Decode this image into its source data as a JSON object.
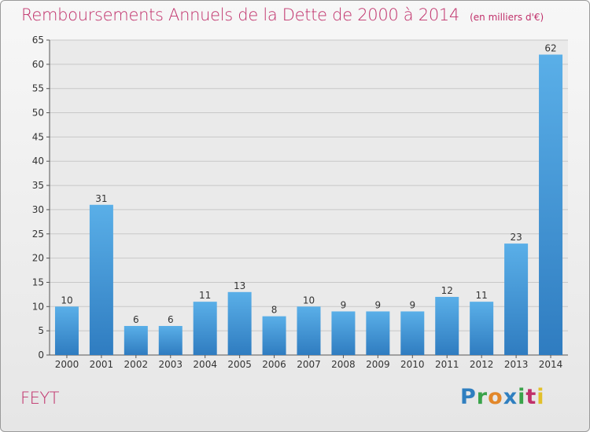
{
  "header": {
    "title": "Remboursements Annuels de la Dette de 2000 à 2014",
    "unit": "(en milliers d'€)"
  },
  "footer": {
    "place": "FEYT",
    "logo": "Proxiti"
  },
  "colors": {
    "bar_light": "#5aafe8",
    "bar_dark": "#2f7cc0",
    "title": "#c0306a",
    "grid": "#c8c8c8"
  },
  "chart_data": {
    "type": "bar",
    "categories": [
      "2000",
      "2001",
      "2002",
      "2003",
      "2004",
      "2005",
      "2006",
      "2007",
      "2008",
      "2009",
      "2010",
      "2011",
      "2012",
      "2013",
      "2014"
    ],
    "values": [
      10,
      31,
      6,
      6,
      11,
      13,
      8,
      10,
      9,
      9,
      9,
      12,
      11,
      23,
      62
    ],
    "ylim": [
      0,
      65
    ],
    "yticks": [
      0,
      5,
      10,
      15,
      20,
      25,
      30,
      35,
      40,
      45,
      50,
      55,
      60,
      65
    ],
    "grid": true,
    "xlabel": "",
    "ylabel": ""
  }
}
